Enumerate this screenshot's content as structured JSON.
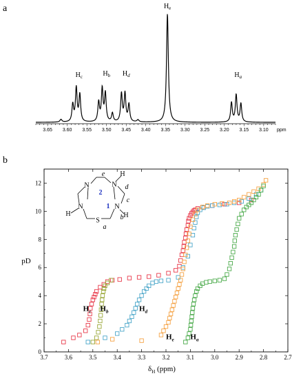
{
  "chart_data": [
    {
      "type": "line",
      "panel_label": "a",
      "x_axis": {
        "range": [
          3.68,
          3.07
        ],
        "ticks": [
          "3.65",
          "3.60",
          "3.55",
          "3.50",
          "3.45",
          "3.40",
          "3.35",
          "3.30",
          "3.25",
          "3.20",
          "3.15",
          "3.10"
        ],
        "unit": "ppm",
        "reversed": true
      },
      "peaks": [
        {
          "label": "H",
          "sub": "c",
          "ppm": 3.57
        },
        {
          "label": "H",
          "sub": "b",
          "ppm": 3.5
        },
        {
          "label": "H",
          "sub": "d",
          "ppm": 3.45
        },
        {
          "label": "H",
          "sub": "e",
          "ppm": 3.345
        },
        {
          "label": "H",
          "sub": "a",
          "ppm": 3.165
        }
      ],
      "spectrum_lines": [
        {
          "center": 3.616,
          "height": 0.025,
          "width": 0.003
        },
        {
          "center": 3.586,
          "height": 0.16,
          "width": 0.0025
        },
        {
          "center": 3.577,
          "height": 0.31,
          "width": 0.0025
        },
        {
          "center": 3.568,
          "height": 0.25,
          "width": 0.0025
        },
        {
          "center": 3.52,
          "height": 0.18,
          "width": 0.0025
        },
        {
          "center": 3.511,
          "height": 0.3,
          "width": 0.0025
        },
        {
          "center": 3.503,
          "height": 0.26,
          "width": 0.0025
        },
        {
          "center": 3.485,
          "height": 0.08,
          "width": 0.0025
        },
        {
          "center": 3.462,
          "height": 0.26,
          "width": 0.0025
        },
        {
          "center": 3.453,
          "height": 0.26,
          "width": 0.0025
        },
        {
          "center": 3.443,
          "height": 0.16,
          "width": 0.0025
        },
        {
          "center": 3.42,
          "height": 0.02,
          "width": 0.003
        },
        {
          "center": 3.345,
          "height": 1.0,
          "width": 0.0028
        },
        {
          "center": 3.182,
          "height": 0.18,
          "width": 0.0025
        },
        {
          "center": 3.17,
          "height": 0.25,
          "width": 0.0025
        },
        {
          "center": 3.158,
          "height": 0.17,
          "width": 0.0025
        }
      ]
    },
    {
      "type": "scatter",
      "panel_label": "b",
      "xlabel": "δH (ppm)",
      "xlabel_main": "δ",
      "xlabel_sub": "H",
      "xlabel_unit": " (ppm)",
      "ylabel": "pD",
      "xlim": [
        3.7,
        2.7
      ],
      "ylim": [
        0,
        13
      ],
      "x_ticks": [
        "3.7",
        "3.6",
        "3.5",
        "3.4",
        "3.3",
        "3.2",
        "3.1",
        "3.0",
        "2.9",
        "2.8",
        "2.7"
      ],
      "y_ticks": [
        "0",
        "2",
        "4",
        "6",
        "8",
        "10",
        "12"
      ],
      "series": [
        {
          "id": "Hc",
          "label": "H",
          "sub": "c",
          "color": "#e8394a",
          "x": [
            3.62,
            3.58,
            3.555,
            3.53,
            3.52,
            3.515,
            3.512,
            3.51,
            3.505,
            3.5,
            3.495,
            3.49,
            3.485,
            3.47,
            3.455,
            3.44,
            3.42,
            3.39,
            3.35,
            3.31,
            3.27,
            3.23,
            3.19,
            3.16,
            3.145,
            3.14,
            3.135,
            3.13,
            3.127,
            3.125,
            3.12,
            3.118,
            3.115,
            3.11,
            3.108,
            3.105,
            3.1,
            3.095,
            3.09,
            3.085,
            3.08,
            3.07,
            3.05,
            3.01,
            2.96,
            2.9,
            2.85
          ],
          "y": [
            0.7,
            1.0,
            1.2,
            1.5,
            1.9,
            2.3,
            2.7,
            3.1,
            3.4,
            3.7,
            3.9,
            4.1,
            4.3,
            4.6,
            4.8,
            5.0,
            5.1,
            5.15,
            5.25,
            5.3,
            5.35,
            5.45,
            5.6,
            5.8,
            6.1,
            6.5,
            6.9,
            7.2,
            7.5,
            7.8,
            8.1,
            8.4,
            8.7,
            9.0,
            9.3,
            9.5,
            9.7,
            9.85,
            9.95,
            10.05,
            10.1,
            10.2,
            10.3,
            10.4,
            10.5,
            10.6,
            10.8
          ]
        },
        {
          "id": "Hb",
          "label": "H",
          "sub": "b",
          "color": "#9aa83a",
          "x": [
            3.5,
            3.485,
            3.478,
            3.473,
            3.47,
            3.468,
            3.466,
            3.464,
            3.462,
            3.46,
            3.457,
            3.454,
            3.45,
            3.44,
            3.425
          ],
          "y": [
            0.7,
            1.0,
            1.4,
            1.8,
            2.2,
            2.6,
            3.0,
            3.4,
            3.7,
            4.0,
            4.3,
            4.5,
            4.7,
            4.9,
            5.1
          ]
        },
        {
          "id": "Hd",
          "label": "H",
          "sub": "d",
          "color": "#4aa6c9",
          "x": [
            3.52,
            3.45,
            3.4,
            3.38,
            3.36,
            3.35,
            3.34,
            3.332,
            3.325,
            3.318,
            3.31,
            3.3,
            3.29,
            3.28,
            3.27,
            3.255,
            3.24,
            3.22,
            3.19,
            3.15,
            3.13,
            3.11,
            3.1,
            3.09,
            3.085,
            3.08,
            3.075,
            3.07,
            3.06,
            3.045,
            3.03,
            3.01,
            2.98,
            2.95,
            2.92,
            2.89,
            2.86,
            2.83,
            2.81
          ],
          "y": [
            0.7,
            1.0,
            1.3,
            1.6,
            1.9,
            2.2,
            2.5,
            2.8,
            3.1,
            3.4,
            3.7,
            4.0,
            4.3,
            4.5,
            4.7,
            4.9,
            5.0,
            5.05,
            5.1,
            5.3,
            6.0,
            6.8,
            7.6,
            8.3,
            8.8,
            9.2,
            9.6,
            9.9,
            10.1,
            10.25,
            10.35,
            10.4,
            10.45,
            10.5,
            10.6,
            10.7,
            10.9,
            11.2,
            11.5
          ]
        },
        {
          "id": "He",
          "label": "H",
          "sub": "e",
          "color": "#f5a243",
          "x": [
            3.48,
            3.42,
            3.3,
            3.22,
            3.21,
            3.2,
            3.19,
            3.185,
            3.18,
            3.175,
            3.17,
            3.165,
            3.16,
            3.155,
            3.15,
            3.145,
            3.14,
            3.135,
            3.13,
            3.125,
            3.12,
            3.115,
            3.11,
            3.105,
            3.1,
            3.09,
            3.08,
            3.07,
            3.05,
            3.03,
            3.0,
            2.97,
            2.94,
            2.92,
            2.9,
            2.88,
            2.86,
            2.84,
            2.82,
            2.8,
            2.79
          ],
          "y": [
            0.7,
            0.9,
            0.8,
            1.2,
            1.5,
            1.8,
            2.1,
            2.4,
            2.7,
            3.0,
            3.3,
            3.6,
            3.9,
            4.2,
            4.5,
            4.8,
            5.1,
            5.5,
            5.9,
            6.4,
            6.9,
            7.4,
            7.9,
            8.4,
            8.9,
            9.4,
            9.8,
            10.1,
            10.3,
            10.4,
            10.5,
            10.55,
            10.6,
            10.7,
            10.8,
            11.0,
            11.2,
            11.4,
            11.6,
            11.9,
            12.2
          ]
        },
        {
          "id": "Ha",
          "label": "H",
          "sub": "a",
          "color": "#4aaa4a",
          "x": [
            3.12,
            3.11,
            3.105,
            3.1,
            3.098,
            3.096,
            3.094,
            3.092,
            3.09,
            3.087,
            3.084,
            3.08,
            3.075,
            3.07,
            3.06,
            3.05,
            3.035,
            3.02,
            3.0,
            2.98,
            2.96,
            2.95,
            2.94,
            2.935,
            2.93,
            2.925,
            2.92,
            2.918,
            2.915,
            2.91,
            2.905,
            2.9,
            2.89,
            2.88,
            2.87,
            2.86,
            2.85,
            2.84,
            2.83,
            2.82,
            2.81,
            2.8
          ],
          "y": [
            0.7,
            1.0,
            1.3,
            1.6,
            1.9,
            2.2,
            2.5,
            2.8,
            3.1,
            3.4,
            3.7,
            4.0,
            4.3,
            4.5,
            4.7,
            4.85,
            4.95,
            5.0,
            5.05,
            5.1,
            5.2,
            5.5,
            5.9,
            6.3,
            6.7,
            7.1,
            7.5,
            7.9,
            8.3,
            8.7,
            9.1,
            9.5,
            9.8,
            10.1,
            10.3,
            10.45,
            10.6,
            10.8,
            11.0,
            11.2,
            11.5,
            11.8
          ]
        }
      ],
      "series_label_positions": {
        "Hc": [
          3.54,
          2.9
        ],
        "Hb": [
          3.47,
          2.9
        ],
        "Hd": [
          3.31,
          2.9
        ],
        "He": [
          3.2,
          0.9
        ],
        "Ha": [
          3.1,
          0.9
        ]
      }
    }
  ],
  "molecule": {
    "atoms": [
      {
        "text": "N",
        "color": "#000"
      },
      {
        "text": "N",
        "color": "#000"
      },
      {
        "text": "N",
        "color": "#000"
      },
      {
        "text": "N",
        "color": "#000"
      },
      {
        "text": "S",
        "color": "#000"
      },
      {
        "text": "H",
        "color": "#000"
      },
      {
        "text": "H",
        "color": "#000"
      },
      {
        "text": "H",
        "color": "#000"
      }
    ],
    "position_labels": [
      "e",
      "d",
      "c",
      "b",
      "a"
    ],
    "site_labels": [
      "2",
      "1"
    ],
    "site_color": "#1a2fbf"
  }
}
